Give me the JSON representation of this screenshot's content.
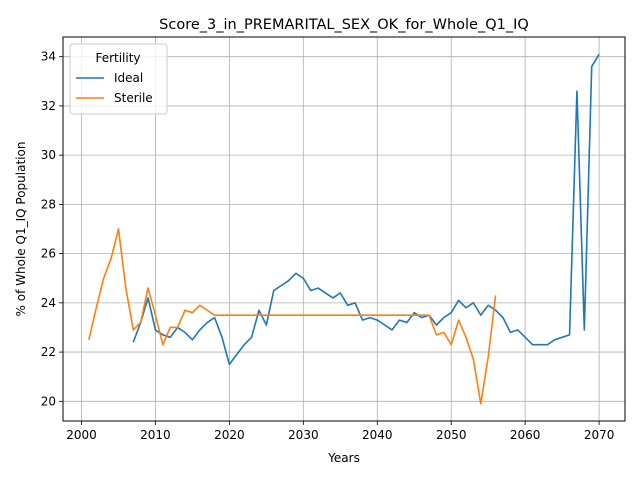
{
  "chart_data": {
    "type": "line",
    "title": "Score_3_in_PREMARITAL_SEX_OK_for_Whole_Q1_IQ",
    "xlabel": "Years",
    "ylabel": "% of Whole Q1_IQ Population",
    "xlim": [
      1997.5,
      2073.5
    ],
    "ylim": [
      19.2,
      34.8
    ],
    "xticks": [
      2000,
      2010,
      2020,
      2030,
      2040,
      2050,
      2060,
      2070
    ],
    "yticks": [
      20,
      22,
      24,
      26,
      28,
      30,
      32,
      34
    ],
    "grid": true,
    "legend": {
      "title": "Fertility",
      "placement": "top-left"
    },
    "series": [
      {
        "name": "Ideal",
        "color": "#1f77b4",
        "x": [
          2007,
          2008,
          2009,
          2010,
          2011,
          2012,
          2013,
          2014,
          2015,
          2016,
          2017,
          2018,
          2019,
          2020,
          2021,
          2022,
          2023,
          2024,
          2025,
          2026,
          2027,
          2028,
          2029,
          2030,
          2031,
          2032,
          2033,
          2034,
          2035,
          2036,
          2037,
          2038,
          2039,
          2040,
          2041,
          2042,
          2043,
          2044,
          2045,
          2046,
          2047,
          2048,
          2049,
          2050,
          2051,
          2052,
          2053,
          2054,
          2055,
          2056,
          2057,
          2058,
          2059,
          2060,
          2061,
          2062,
          2063,
          2064,
          2065,
          2066,
          2067,
          2068,
          2069,
          2070
        ],
        "y": [
          22.4,
          23.2,
          24.2,
          22.9,
          22.7,
          22.6,
          23.0,
          22.8,
          22.5,
          22.9,
          23.2,
          23.4,
          22.6,
          21.5,
          21.9,
          22.3,
          22.6,
          23.7,
          23.1,
          24.5,
          24.7,
          24.9,
          25.2,
          25.0,
          24.5,
          24.6,
          24.4,
          24.2,
          24.4,
          23.9,
          24.0,
          23.3,
          23.4,
          23.3,
          23.1,
          22.9,
          23.3,
          23.2,
          23.6,
          23.4,
          23.5,
          23.1,
          23.4,
          23.6,
          24.1,
          23.8,
          24.0,
          23.5,
          23.9,
          23.7,
          23.4,
          22.8,
          22.9,
          22.6,
          22.3,
          22.3,
          22.3,
          22.5,
          22.6,
          22.7,
          32.6,
          22.9,
          33.6,
          34.1
        ]
      },
      {
        "name": "Sterile",
        "color": "#ff7f0e",
        "x": [
          2001,
          2002,
          2003,
          2004,
          2005,
          2006,
          2007,
          2008,
          2009,
          2010,
          2011,
          2012,
          2013,
          2014,
          2015,
          2016,
          2017,
          2018,
          2019,
          2020,
          2021,
          2022,
          2023,
          2024,
          2025,
          2026,
          2027,
          2028,
          2029,
          2030,
          2031,
          2032,
          2033,
          2034,
          2035,
          2036,
          2037,
          2038,
          2039,
          2040,
          2041,
          2042,
          2043,
          2044,
          2045,
          2046,
          2047,
          2048,
          2049,
          2050,
          2051,
          2052,
          2053,
          2054,
          2055,
          2056
        ],
        "y": [
          22.5,
          23.8,
          25.0,
          25.8,
          27.0,
          24.6,
          22.9,
          23.2,
          24.6,
          23.5,
          22.3,
          23.0,
          23.0,
          23.7,
          23.6,
          23.9,
          23.7,
          23.5,
          23.5,
          23.5,
          23.5,
          23.5,
          23.5,
          23.5,
          23.5,
          23.5,
          23.5,
          23.5,
          23.5,
          23.5,
          23.5,
          23.5,
          23.5,
          23.5,
          23.5,
          23.5,
          23.5,
          23.5,
          23.5,
          23.5,
          23.5,
          23.5,
          23.5,
          23.5,
          23.5,
          23.5,
          23.5,
          22.7,
          22.8,
          22.3,
          23.3,
          22.6,
          21.7,
          19.9,
          21.8,
          24.3
        ]
      }
    ]
  }
}
